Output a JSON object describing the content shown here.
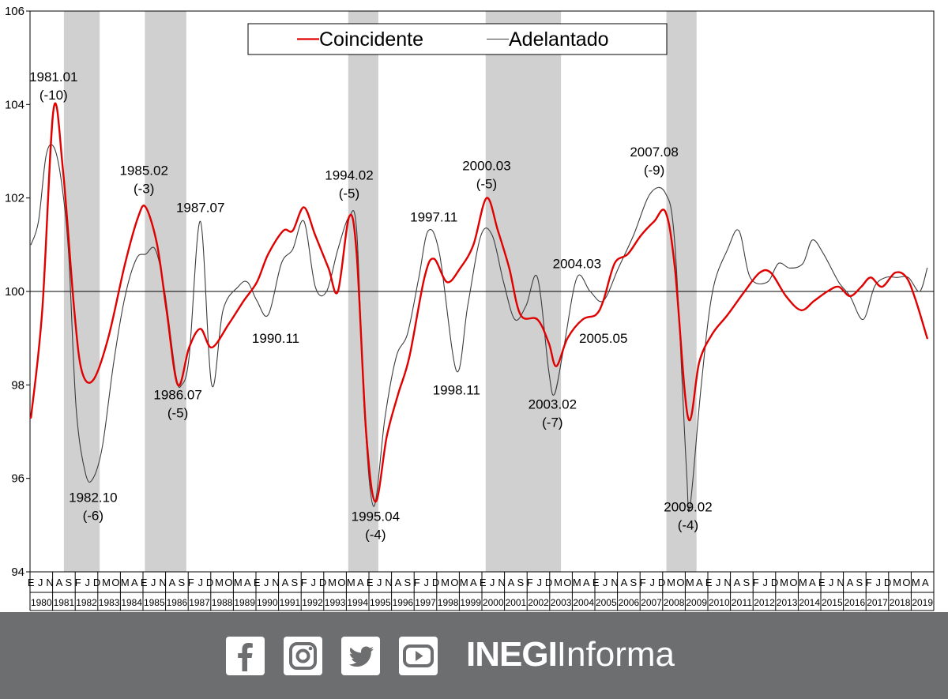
{
  "chart_data": {
    "type": "line",
    "yticks": [
      "94",
      "96",
      "98",
      "100",
      "102",
      "104",
      "106"
    ],
    "ylim": [
      94,
      106
    ],
    "reference_line": 100,
    "legend": [
      {
        "name": "Coincidente",
        "color": "#e00000"
      },
      {
        "name": "Adelantado",
        "color": "#3c3c3c"
      }
    ],
    "recession_shading": [
      [
        "1981-07",
        "1983-01"
      ],
      [
        "1985-02",
        "1986-11"
      ],
      [
        "1994-02",
        "1995-05"
      ],
      [
        "2000-03",
        "2003-06"
      ],
      [
        "2008-03",
        "2009-06"
      ]
    ],
    "x_month_labels": [
      {
        "t": "1980-01",
        "l": "E"
      },
      {
        "t": "1980-06",
        "l": "J"
      },
      {
        "t": "1980-11",
        "l": "N"
      },
      {
        "t": "1981-04",
        "l": "A"
      },
      {
        "t": "1981-09",
        "l": "S"
      },
      {
        "t": "1982-02",
        "l": "F"
      },
      {
        "t": "1982-07",
        "l": "J"
      },
      {
        "t": "1982-12",
        "l": "D"
      },
      {
        "t": "1983-05",
        "l": "M"
      },
      {
        "t": "1983-10",
        "l": "O"
      },
      {
        "t": "1984-03",
        "l": "M"
      },
      {
        "t": "1984-08",
        "l": "A"
      },
      {
        "t": "1985-01",
        "l": "E"
      },
      {
        "t": "1985-06",
        "l": "J"
      },
      {
        "t": "1985-11",
        "l": "N"
      },
      {
        "t": "1986-04",
        "l": "A"
      },
      {
        "t": "1986-09",
        "l": "S"
      },
      {
        "t": "1987-02",
        "l": "F"
      },
      {
        "t": "1987-07",
        "l": "J"
      },
      {
        "t": "1987-12",
        "l": "D"
      },
      {
        "t": "1988-05",
        "l": "M"
      },
      {
        "t": "1988-10",
        "l": "O"
      },
      {
        "t": "1989-03",
        "l": "M"
      },
      {
        "t": "1989-08",
        "l": "A"
      },
      {
        "t": "1990-01",
        "l": "E"
      },
      {
        "t": "1990-06",
        "l": "J"
      },
      {
        "t": "1990-11",
        "l": "N"
      },
      {
        "t": "1991-04",
        "l": "A"
      },
      {
        "t": "1991-09",
        "l": "S"
      },
      {
        "t": "1992-02",
        "l": "F"
      },
      {
        "t": "1992-07",
        "l": "J"
      },
      {
        "t": "1992-12",
        "l": "D"
      },
      {
        "t": "1993-05",
        "l": "M"
      },
      {
        "t": "1993-10",
        "l": "O"
      },
      {
        "t": "1994-03",
        "l": "M"
      },
      {
        "t": "1994-08",
        "l": "A"
      },
      {
        "t": "1995-01",
        "l": "E"
      },
      {
        "t": "1995-06",
        "l": "J"
      },
      {
        "t": "1995-11",
        "l": "N"
      },
      {
        "t": "1996-04",
        "l": "A"
      },
      {
        "t": "1996-09",
        "l": "S"
      },
      {
        "t": "1997-02",
        "l": "F"
      },
      {
        "t": "1997-07",
        "l": "J"
      },
      {
        "t": "1997-12",
        "l": "D"
      },
      {
        "t": "1998-05",
        "l": "M"
      },
      {
        "t": "1998-10",
        "l": "O"
      },
      {
        "t": "1999-03",
        "l": "M"
      },
      {
        "t": "1999-08",
        "l": "A"
      },
      {
        "t": "2000-01",
        "l": "E"
      },
      {
        "t": "2000-06",
        "l": "J"
      },
      {
        "t": "2000-11",
        "l": "N"
      },
      {
        "t": "2001-04",
        "l": "A"
      },
      {
        "t": "2001-09",
        "l": "S"
      },
      {
        "t": "2002-02",
        "l": "F"
      },
      {
        "t": "2002-07",
        "l": "J"
      },
      {
        "t": "2002-12",
        "l": "D"
      },
      {
        "t": "2003-05",
        "l": "M"
      },
      {
        "t": "2003-10",
        "l": "O"
      },
      {
        "t": "2004-03",
        "l": "M"
      },
      {
        "t": "2004-08",
        "l": "A"
      },
      {
        "t": "2005-01",
        "l": "E"
      },
      {
        "t": "2005-06",
        "l": "J"
      },
      {
        "t": "2005-11",
        "l": "N"
      },
      {
        "t": "2006-04",
        "l": "A"
      },
      {
        "t": "2006-09",
        "l": "S"
      },
      {
        "t": "2007-02",
        "l": "F"
      },
      {
        "t": "2007-07",
        "l": "J"
      },
      {
        "t": "2007-12",
        "l": "D"
      },
      {
        "t": "2008-05",
        "l": "M"
      },
      {
        "t": "2008-10",
        "l": "O"
      },
      {
        "t": "2009-03",
        "l": "M"
      },
      {
        "t": "2009-08",
        "l": "A"
      },
      {
        "t": "2010-01",
        "l": "E"
      },
      {
        "t": "2010-06",
        "l": "J"
      },
      {
        "t": "2010-11",
        "l": "N"
      },
      {
        "t": "2011-04",
        "l": "A"
      },
      {
        "t": "2011-09",
        "l": "S"
      },
      {
        "t": "2012-02",
        "l": "F"
      },
      {
        "t": "2012-07",
        "l": "J"
      },
      {
        "t": "2012-12",
        "l": "D"
      },
      {
        "t": "2013-05",
        "l": "M"
      },
      {
        "t": "2013-10",
        "l": "O"
      },
      {
        "t": "2014-03",
        "l": "M"
      },
      {
        "t": "2014-08",
        "l": "A"
      },
      {
        "t": "2015-01",
        "l": "E"
      },
      {
        "t": "2015-06",
        "l": "J"
      },
      {
        "t": "2015-11",
        "l": "N"
      },
      {
        "t": "2016-04",
        "l": "A"
      },
      {
        "t": "2016-09",
        "l": "S"
      },
      {
        "t": "2017-02",
        "l": "F"
      },
      {
        "t": "2017-07",
        "l": "J"
      },
      {
        "t": "2017-12",
        "l": "D"
      },
      {
        "t": "2018-05",
        "l": "M"
      },
      {
        "t": "2018-10",
        "l": "O"
      },
      {
        "t": "2019-03",
        "l": "M"
      },
      {
        "t": "2019-08",
        "l": "A"
      }
    ],
    "x_year_labels": [
      "1980",
      "1981",
      "1982",
      "1983",
      "1984",
      "1985",
      "1986",
      "1987",
      "1988",
      "1989",
      "1990",
      "1991",
      "1992",
      "1993",
      "1994",
      "1995",
      "1996",
      "1997",
      "1998",
      "1999",
      "2000",
      "2001",
      "2002",
      "2003",
      "2004",
      "2005",
      "2006",
      "2007",
      "2008",
      "2009",
      "2010",
      "2011",
      "2012",
      "2013",
      "2014",
      "2015",
      "2016",
      "2017",
      "2018",
      "2019"
    ],
    "series": [
      {
        "name": "Coincidente",
        "color": "#e00000",
        "points": [
          [
            "1980-01",
            97.3
          ],
          [
            "1980-07",
            99.6
          ],
          [
            "1981-01",
            103.9
          ],
          [
            "1981-06",
            102.6
          ],
          [
            "1981-12",
            99.6
          ],
          [
            "1982-04",
            98.3
          ],
          [
            "1982-10",
            98.1
          ],
          [
            "1983-06",
            99.0
          ],
          [
            "1984-03",
            100.6
          ],
          [
            "1984-10",
            101.6
          ],
          [
            "1985-02",
            101.8
          ],
          [
            "1985-08",
            101.0
          ],
          [
            "1986-01",
            99.6
          ],
          [
            "1986-07",
            98.0
          ],
          [
            "1987-01",
            98.8
          ],
          [
            "1987-07",
            99.2
          ],
          [
            "1988-01",
            98.8
          ],
          [
            "1988-10",
            99.3
          ],
          [
            "1989-06",
            99.8
          ],
          [
            "1990-01",
            100.2
          ],
          [
            "1990-07",
            100.8
          ],
          [
            "1991-03",
            101.3
          ],
          [
            "1991-08",
            101.3
          ],
          [
            "1992-02",
            101.8
          ],
          [
            "1992-08",
            101.2
          ],
          [
            "1993-03",
            100.5
          ],
          [
            "1993-08",
            100.0
          ],
          [
            "1994-02",
            101.6
          ],
          [
            "1994-06",
            100.8
          ],
          [
            "1994-11",
            97.0
          ],
          [
            "1995-04",
            95.5
          ],
          [
            "1995-10",
            96.9
          ],
          [
            "1996-04",
            97.8
          ],
          [
            "1996-10",
            98.6
          ],
          [
            "1997-06",
            100.3
          ],
          [
            "1997-11",
            100.7
          ],
          [
            "1998-06",
            100.2
          ],
          [
            "1999-01",
            100.5
          ],
          [
            "1999-08",
            101.0
          ],
          [
            "2000-03",
            102.0
          ],
          [
            "2000-09",
            101.3
          ],
          [
            "2001-03",
            100.5
          ],
          [
            "2001-09",
            99.5
          ],
          [
            "2002-06",
            99.4
          ],
          [
            "2002-12",
            98.9
          ],
          [
            "2003-04",
            98.4
          ],
          [
            "2003-10",
            99.0
          ],
          [
            "2004-06",
            99.4
          ],
          [
            "2005-01",
            99.5
          ],
          [
            "2005-05",
            99.8
          ],
          [
            "2005-11",
            100.6
          ],
          [
            "2006-06",
            100.8
          ],
          [
            "2007-01",
            101.2
          ],
          [
            "2007-08",
            101.5
          ],
          [
            "2008-02",
            101.7
          ],
          [
            "2008-07",
            100.5
          ],
          [
            "2009-02",
            97.3
          ],
          [
            "2009-08",
            98.5
          ],
          [
            "2010-03",
            99.1
          ],
          [
            "2010-11",
            99.5
          ],
          [
            "2011-08",
            100.0
          ],
          [
            "2012-04",
            100.4
          ],
          [
            "2012-10",
            100.4
          ],
          [
            "2013-06",
            99.9
          ],
          [
            "2014-02",
            99.6
          ],
          [
            "2014-09",
            99.8
          ],
          [
            "2015-04",
            100.0
          ],
          [
            "2015-10",
            100.1
          ],
          [
            "2016-04",
            99.9
          ],
          [
            "2016-10",
            100.1
          ],
          [
            "2017-03",
            100.3
          ],
          [
            "2017-09",
            100.1
          ],
          [
            "2018-04",
            100.4
          ],
          [
            "2018-10",
            100.3
          ],
          [
            "2019-03",
            99.8
          ],
          [
            "2019-09",
            99.0
          ]
        ]
      },
      {
        "name": "Adelantado",
        "color": "#3c3c3c",
        "points": [
          [
            "1980-01",
            101.0
          ],
          [
            "1980-05",
            101.5
          ],
          [
            "1980-09",
            102.9
          ],
          [
            "1981-01",
            103.1
          ],
          [
            "1981-05",
            102.4
          ],
          [
            "1981-09",
            100.8
          ],
          [
            "1982-01",
            97.5
          ],
          [
            "1982-06",
            96.1
          ],
          [
            "1982-10",
            96.0
          ],
          [
            "1983-03",
            96.7
          ],
          [
            "1983-09",
            98.5
          ],
          [
            "1984-03",
            99.9
          ],
          [
            "1984-09",
            100.7
          ],
          [
            "1985-02",
            100.8
          ],
          [
            "1985-07",
            100.9
          ],
          [
            "1985-12",
            100.0
          ],
          [
            "1986-06",
            98.2
          ],
          [
            "1986-09",
            98.0
          ],
          [
            "1987-01",
            98.6
          ],
          [
            "1987-07",
            101.5
          ],
          [
            "1988-01",
            98.0
          ],
          [
            "1988-07",
            99.6
          ],
          [
            "1989-03",
            100.1
          ],
          [
            "1989-08",
            100.2
          ],
          [
            "1990-01",
            99.8
          ],
          [
            "1990-07",
            99.5
          ],
          [
            "1991-02",
            100.6
          ],
          [
            "1991-08",
            100.9
          ],
          [
            "1992-02",
            101.5
          ],
          [
            "1992-08",
            100.1
          ],
          [
            "1993-02",
            100.0
          ],
          [
            "1993-08",
            100.9
          ],
          [
            "1994-02",
            101.6
          ],
          [
            "1994-06",
            101.3
          ],
          [
            "1994-10",
            97.5
          ],
          [
            "1995-03",
            95.4
          ],
          [
            "1995-09",
            97.3
          ],
          [
            "1996-03",
            98.6
          ],
          [
            "1996-09",
            99.1
          ],
          [
            "1997-03",
            100.3
          ],
          [
            "1997-08",
            101.3
          ],
          [
            "1998-02",
            100.8
          ],
          [
            "1998-11",
            98.3
          ],
          [
            "1999-05",
            99.7
          ],
          [
            "1999-12",
            101.2
          ],
          [
            "2000-06",
            101.2
          ],
          [
            "2000-12",
            100.2
          ],
          [
            "2001-06",
            99.4
          ],
          [
            "2001-12",
            99.7
          ],
          [
            "2002-06",
            100.3
          ],
          [
            "2002-12",
            98.3
          ],
          [
            "2003-03",
            97.8
          ],
          [
            "2003-08",
            98.8
          ],
          [
            "2004-03",
            100.3
          ],
          [
            "2004-10",
            100.0
          ],
          [
            "2005-05",
            99.8
          ],
          [
            "2006-01",
            100.5
          ],
          [
            "2006-09",
            101.2
          ],
          [
            "2007-06",
            102.1
          ],
          [
            "2008-02",
            102.1
          ],
          [
            "2008-07",
            101.0
          ],
          [
            "2009-01",
            96.3
          ],
          [
            "2009-03",
            95.4
          ],
          [
            "2009-09",
            98.0
          ],
          [
            "2010-03",
            100.0
          ],
          [
            "2010-11",
            100.9
          ],
          [
            "2011-05",
            101.3
          ],
          [
            "2011-11",
            100.3
          ],
          [
            "2012-08",
            100.2
          ],
          [
            "2013-02",
            100.6
          ],
          [
            "2013-08",
            100.5
          ],
          [
            "2014-03",
            100.6
          ],
          [
            "2014-08",
            101.1
          ],
          [
            "2015-02",
            100.8
          ],
          [
            "2015-10",
            100.2
          ],
          [
            "2016-04",
            99.9
          ],
          [
            "2016-11",
            99.4
          ],
          [
            "2017-05",
            100.1
          ],
          [
            "2017-11",
            100.3
          ],
          [
            "2018-05",
            100.3
          ],
          [
            "2018-11",
            100.3
          ],
          [
            "2019-05",
            100.0
          ],
          [
            "2019-09",
            100.5
          ]
        ]
      }
    ],
    "annotations": [
      {
        "lines": [
          "1981.01",
          "(-10)"
        ],
        "t": "1981-01",
        "v": 104.4
      },
      {
        "lines": [
          "1982.10",
          "(-6)"
        ],
        "t": "1982-10",
        "v": 95.4
      },
      {
        "lines": [
          "1985.02",
          "(-3)"
        ],
        "t": "1985-01",
        "v": 102.4
      },
      {
        "lines": [
          "1986.07",
          "(-5)"
        ],
        "t": "1986-07",
        "v": 97.6
      },
      {
        "lines": [
          "1987.07"
        ],
        "t": "1987-07",
        "v": 101.8
      },
      {
        "lines": [
          "1990.11"
        ],
        "t": "1990-11",
        "v": 99.0
      },
      {
        "lines": [
          "1994.02",
          "(-5)"
        ],
        "t": "1994-02",
        "v": 102.3
      },
      {
        "lines": [
          "1995.04",
          "(-4)"
        ],
        "t": "1995-04",
        "v": 95.0
      },
      {
        "lines": [
          "1997.11"
        ],
        "t": "1997-11",
        "v": 101.6
      },
      {
        "lines": [
          "1998.11"
        ],
        "t": "1998-11",
        "v": 97.9
      },
      {
        "lines": [
          "2000.03",
          "(-5)"
        ],
        "t": "2000-03",
        "v": 102.5
      },
      {
        "lines": [
          "2003.02",
          "(-7)"
        ],
        "t": "2003-02",
        "v": 97.4
      },
      {
        "lines": [
          "2004.03"
        ],
        "t": "2004-03",
        "v": 100.6
      },
      {
        "lines": [
          "2005.05"
        ],
        "t": "2005-05",
        "v": 99.0
      },
      {
        "lines": [
          "2007.08",
          "(-9)"
        ],
        "t": "2007-08",
        "v": 102.8
      },
      {
        "lines": [
          "2009.02",
          "(-4)"
        ],
        "t": "2009-02",
        "v": 95.2
      }
    ]
  },
  "footer": {
    "brand_bold": "INEGI",
    "brand_light": "Informa",
    "icons": [
      "facebook-icon",
      "instagram-icon",
      "twitter-icon",
      "youtube-icon"
    ]
  }
}
